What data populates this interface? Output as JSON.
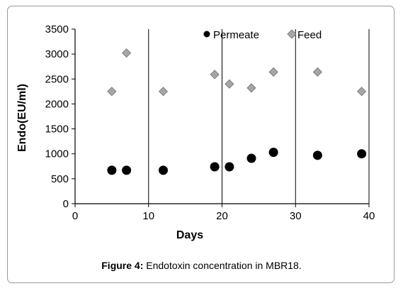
{
  "chart_data": {
    "type": "scatter",
    "xlabel": "Days",
    "ylabel": "Endo(EU/ml)",
    "xlim": [
      0,
      40
    ],
    "ylim": [
      0,
      3500
    ],
    "xticks": [
      "0",
      "10",
      "20",
      "30",
      "40"
    ],
    "yticks": [
      "0",
      "500",
      "1000",
      "1500",
      "2000",
      "2500",
      "3000",
      "3500"
    ],
    "grid": "vertical",
    "legend_position": "top",
    "series": [
      {
        "name": "Permeate",
        "marker": "circle",
        "color": "#000000",
        "points": [
          [
            5,
            670
          ],
          [
            7,
            670
          ],
          [
            12,
            670
          ],
          [
            19,
            740
          ],
          [
            21,
            740
          ],
          [
            24,
            910
          ],
          [
            27,
            1030
          ],
          [
            33,
            970
          ],
          [
            39,
            1000
          ]
        ]
      },
      {
        "name": "Feed",
        "marker": "diamond",
        "color": "#a6a6a6",
        "points": [
          [
            5,
            2250
          ],
          [
            7,
            3020
          ],
          [
            12,
            2250
          ],
          [
            19,
            2590
          ],
          [
            21,
            2400
          ],
          [
            24,
            2320
          ],
          [
            27,
            2640
          ],
          [
            33,
            2640
          ],
          [
            39,
            2250
          ]
        ]
      }
    ]
  },
  "caption": {
    "lead": "Figure 4:",
    "text": " Endotoxin concentration in MBR18."
  }
}
